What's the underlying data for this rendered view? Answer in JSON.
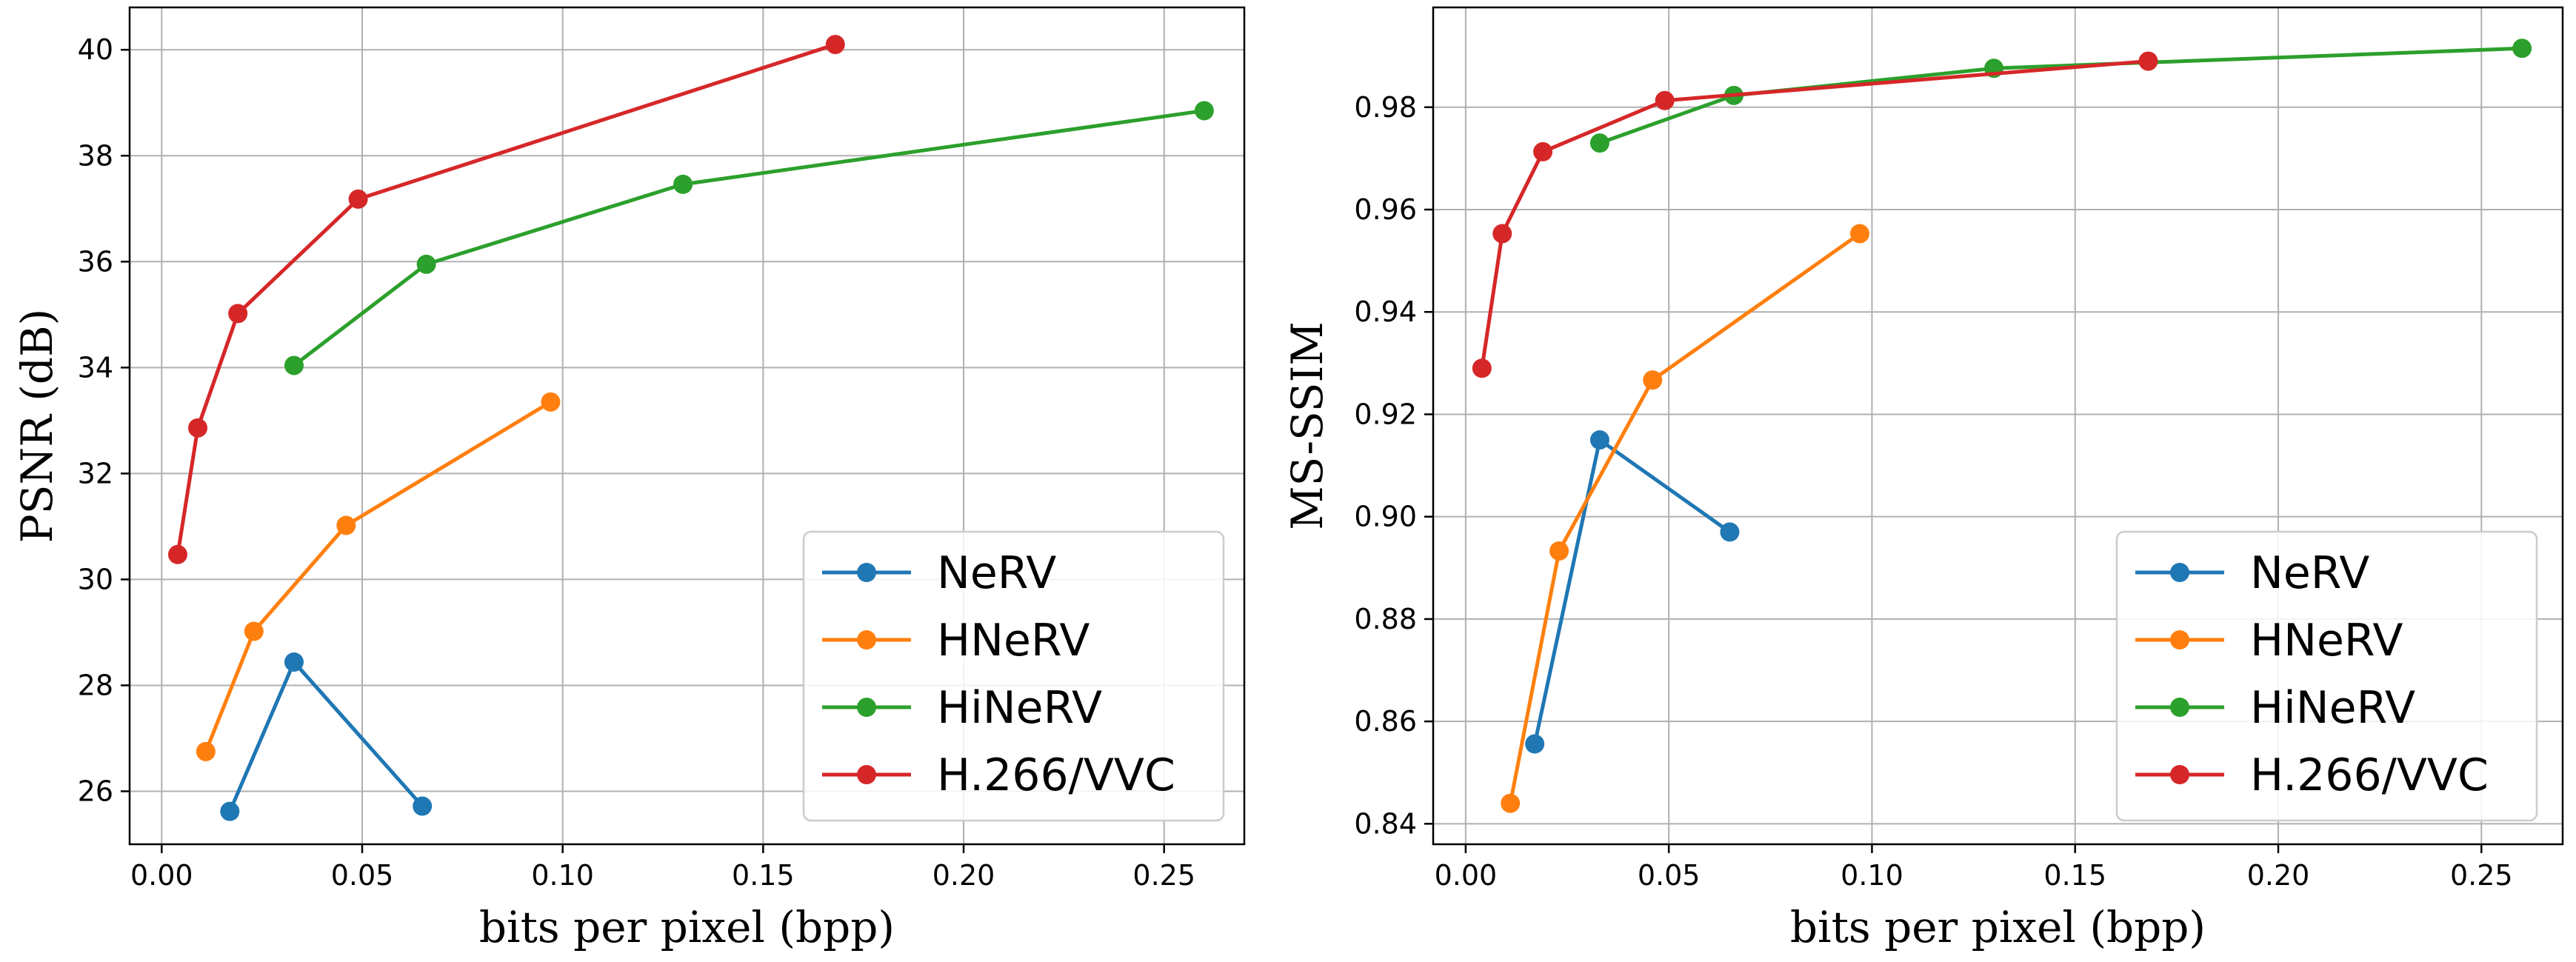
{
  "chart_data": [
    {
      "type": "line",
      "xlabel": "bits per pixel (bpp)",
      "ylabel": "PSNR (dB)",
      "xlim": [
        -0.008,
        0.27
      ],
      "ylim": [
        25.0,
        40.8
      ],
      "xticks": [
        0.0,
        0.05,
        0.1,
        0.15,
        0.2,
        0.25
      ],
      "xtick_labels": [
        "0.00",
        "0.05",
        "0.10",
        "0.15",
        "0.20",
        "0.25"
      ],
      "yticks": [
        26,
        28,
        30,
        32,
        34,
        36,
        38,
        40
      ],
      "ytick_labels": [
        "26",
        "28",
        "30",
        "32",
        "34",
        "36",
        "38",
        "40"
      ],
      "grid": true,
      "legend": "lower-right",
      "series": [
        {
          "name": "NeRV",
          "color": "#1f77b4",
          "x": [
            0.017,
            0.033,
            0.065
          ],
          "y": [
            25.62,
            28.44,
            25.72
          ]
        },
        {
          "name": "HNeRV",
          "color": "#ff7f0e",
          "x": [
            0.011,
            0.023,
            0.046,
            0.097
          ],
          "y": [
            26.75,
            29.02,
            31.02,
            33.35
          ]
        },
        {
          "name": "HiNeRV",
          "color": "#2ca02c",
          "x": [
            0.033,
            0.066,
            0.13,
            0.26
          ],
          "y": [
            34.04,
            35.95,
            37.46,
            38.85
          ]
        },
        {
          "name": "H.266/VVC",
          "color": "#d62728",
          "x": [
            0.004,
            0.009,
            0.019,
            0.049,
            0.168
          ],
          "y": [
            30.47,
            32.86,
            35.02,
            37.18,
            40.1
          ]
        }
      ]
    },
    {
      "type": "line",
      "xlabel": "bits per pixel (bpp)",
      "ylabel": "MS-SSIM",
      "xlim": [
        -0.008,
        0.27
      ],
      "ylim": [
        0.836,
        0.9995
      ],
      "xticks": [
        0.0,
        0.05,
        0.1,
        0.15,
        0.2,
        0.25
      ],
      "xtick_labels": [
        "0.00",
        "0.05",
        "0.10",
        "0.15",
        "0.20",
        "0.25"
      ],
      "yticks": [
        0.84,
        0.86,
        0.88,
        0.9,
        0.92,
        0.94,
        0.96,
        0.98
      ],
      "ytick_labels": [
        "0.84",
        "0.86",
        "0.88",
        "0.90",
        "0.92",
        "0.94",
        "0.96",
        "0.98"
      ],
      "grid": true,
      "legend": "lower-right",
      "series": [
        {
          "name": "NeRV",
          "color": "#1f77b4",
          "x": [
            0.017,
            0.033,
            0.065
          ],
          "y": [
            0.8556,
            0.915,
            0.897
          ]
        },
        {
          "name": "HNeRV",
          "color": "#ff7f0e",
          "x": [
            0.011,
            0.023,
            0.046,
            0.097
          ],
          "y": [
            0.844,
            0.8933,
            0.9267,
            0.9553
          ]
        },
        {
          "name": "HiNeRV",
          "color": "#2ca02c",
          "x": [
            0.033,
            0.066,
            0.13,
            0.26
          ],
          "y": [
            0.973,
            0.9823,
            0.9876,
            0.9915
          ]
        },
        {
          "name": "H.266/VVC",
          "color": "#d62728",
          "x": [
            0.004,
            0.009,
            0.019,
            0.049,
            0.168
          ],
          "y": [
            0.929,
            0.9553,
            0.9713,
            0.9813,
            0.989
          ]
        }
      ]
    }
  ]
}
